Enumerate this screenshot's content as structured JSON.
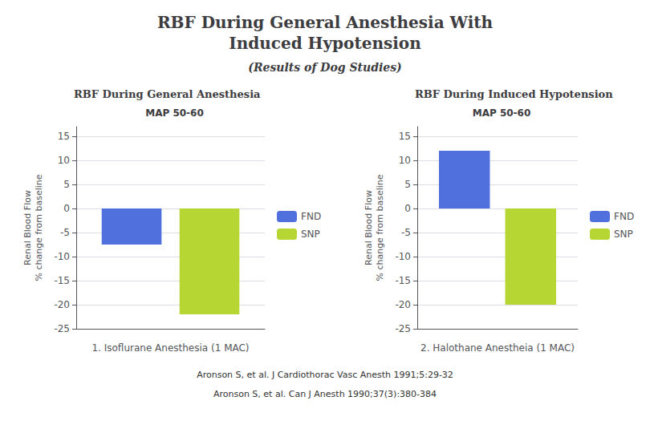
{
  "title": "RBF During General Anesthesia With\nInduced Hypotension",
  "subtitle": "(Results of Dog Studies)",
  "annotations": [
    "Aronson S, et al. J Cardiothorac Vasc Anesth 1991;5:29-32",
    "Aronson S, et al. Can J Anesth 1990;37(3):380-384"
  ],
  "chart_data": [
    {
      "type": "bar",
      "title": "RBF During General Anesthesia",
      "subtitle": "MAP 50-60",
      "categories": [
        null
      ],
      "series": [
        {
          "name": "FND",
          "values": [
            -7.5
          ]
        },
        {
          "name": "SNP",
          "values": [
            -22
          ]
        }
      ],
      "xlabel": "1. Isoflurane Anesthesia (1 MAC)",
      "ylabel": "Renal Blood Flow\n% change from baseline",
      "ylim": [
        -25,
        17
      ],
      "yticks": [
        -25,
        -20,
        -15,
        -10,
        -5,
        0,
        5,
        10,
        15
      ],
      "grid": true,
      "legend": "right",
      "tick_labels": "y"
    },
    {
      "type": "bar",
      "title": "RBF During Induced Hypotension",
      "subtitle": "MAP 50-60",
      "categories": [
        null
      ],
      "series": [
        {
          "name": "FND",
          "values": [
            12
          ]
        },
        {
          "name": "SNP",
          "values": [
            -20
          ]
        }
      ],
      "xlabel": "2. Halothane Anestheia (1 MAC)",
      "ylabel": "Renal Blood Flow\n% change from baseline",
      "ylim": [
        -25,
        17
      ],
      "yticks": [
        -25,
        -20,
        -15,
        -10,
        -5,
        0,
        5,
        10,
        15
      ],
      "grid": true,
      "legend": "right",
      "tick_labels": "y"
    }
  ]
}
